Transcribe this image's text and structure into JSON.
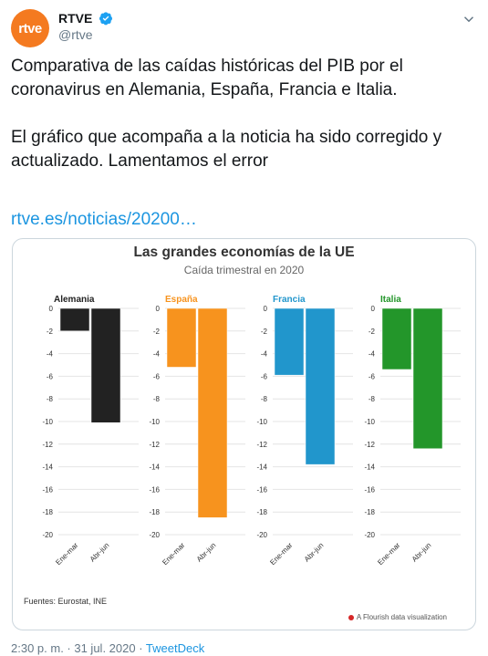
{
  "header": {
    "avatar_text": "rtve",
    "display_name": "RTVE",
    "handle": "@rtve"
  },
  "tweet": {
    "text": "Comparativa de las caídas históricas del PIB por el coronavirus en Alemania, España, Francia e Italia.\n\nEl gráfico que acompaña a la noticia ha sido corregido y actualizado. Lamentamos el error",
    "link": "rtve.es/noticias/20200…"
  },
  "card": {
    "source": "Fuentes: Eurostat, INE",
    "flourish": "A Flourish data visualization"
  },
  "meta": {
    "time": "2:30 p. m. · 31 jul. 2020 · ",
    "client": "TweetDeck"
  },
  "chart_data": {
    "type": "bar",
    "title": "Las grandes economías de la UE",
    "subtitle": "Caída trimestral en 2020",
    "categories": [
      "Ene-mar",
      "Abr-jun"
    ],
    "ylim": [
      -20,
      0
    ],
    "yticks": [
      0,
      -2,
      -4,
      -6,
      -8,
      -10,
      -12,
      -14,
      -16,
      -18,
      -20
    ],
    "panels": [
      {
        "name": "Alemania",
        "color": "#222222",
        "values": [
          -2.0,
          -10.1
        ]
      },
      {
        "name": "España",
        "color": "#f7931e",
        "values": [
          -5.2,
          -18.5
        ]
      },
      {
        "name": "Francia",
        "color": "#2196cc",
        "values": [
          -5.9,
          -13.8
        ]
      },
      {
        "name": "Italia",
        "color": "#23962a",
        "values": [
          -5.4,
          -12.4
        ]
      }
    ]
  }
}
